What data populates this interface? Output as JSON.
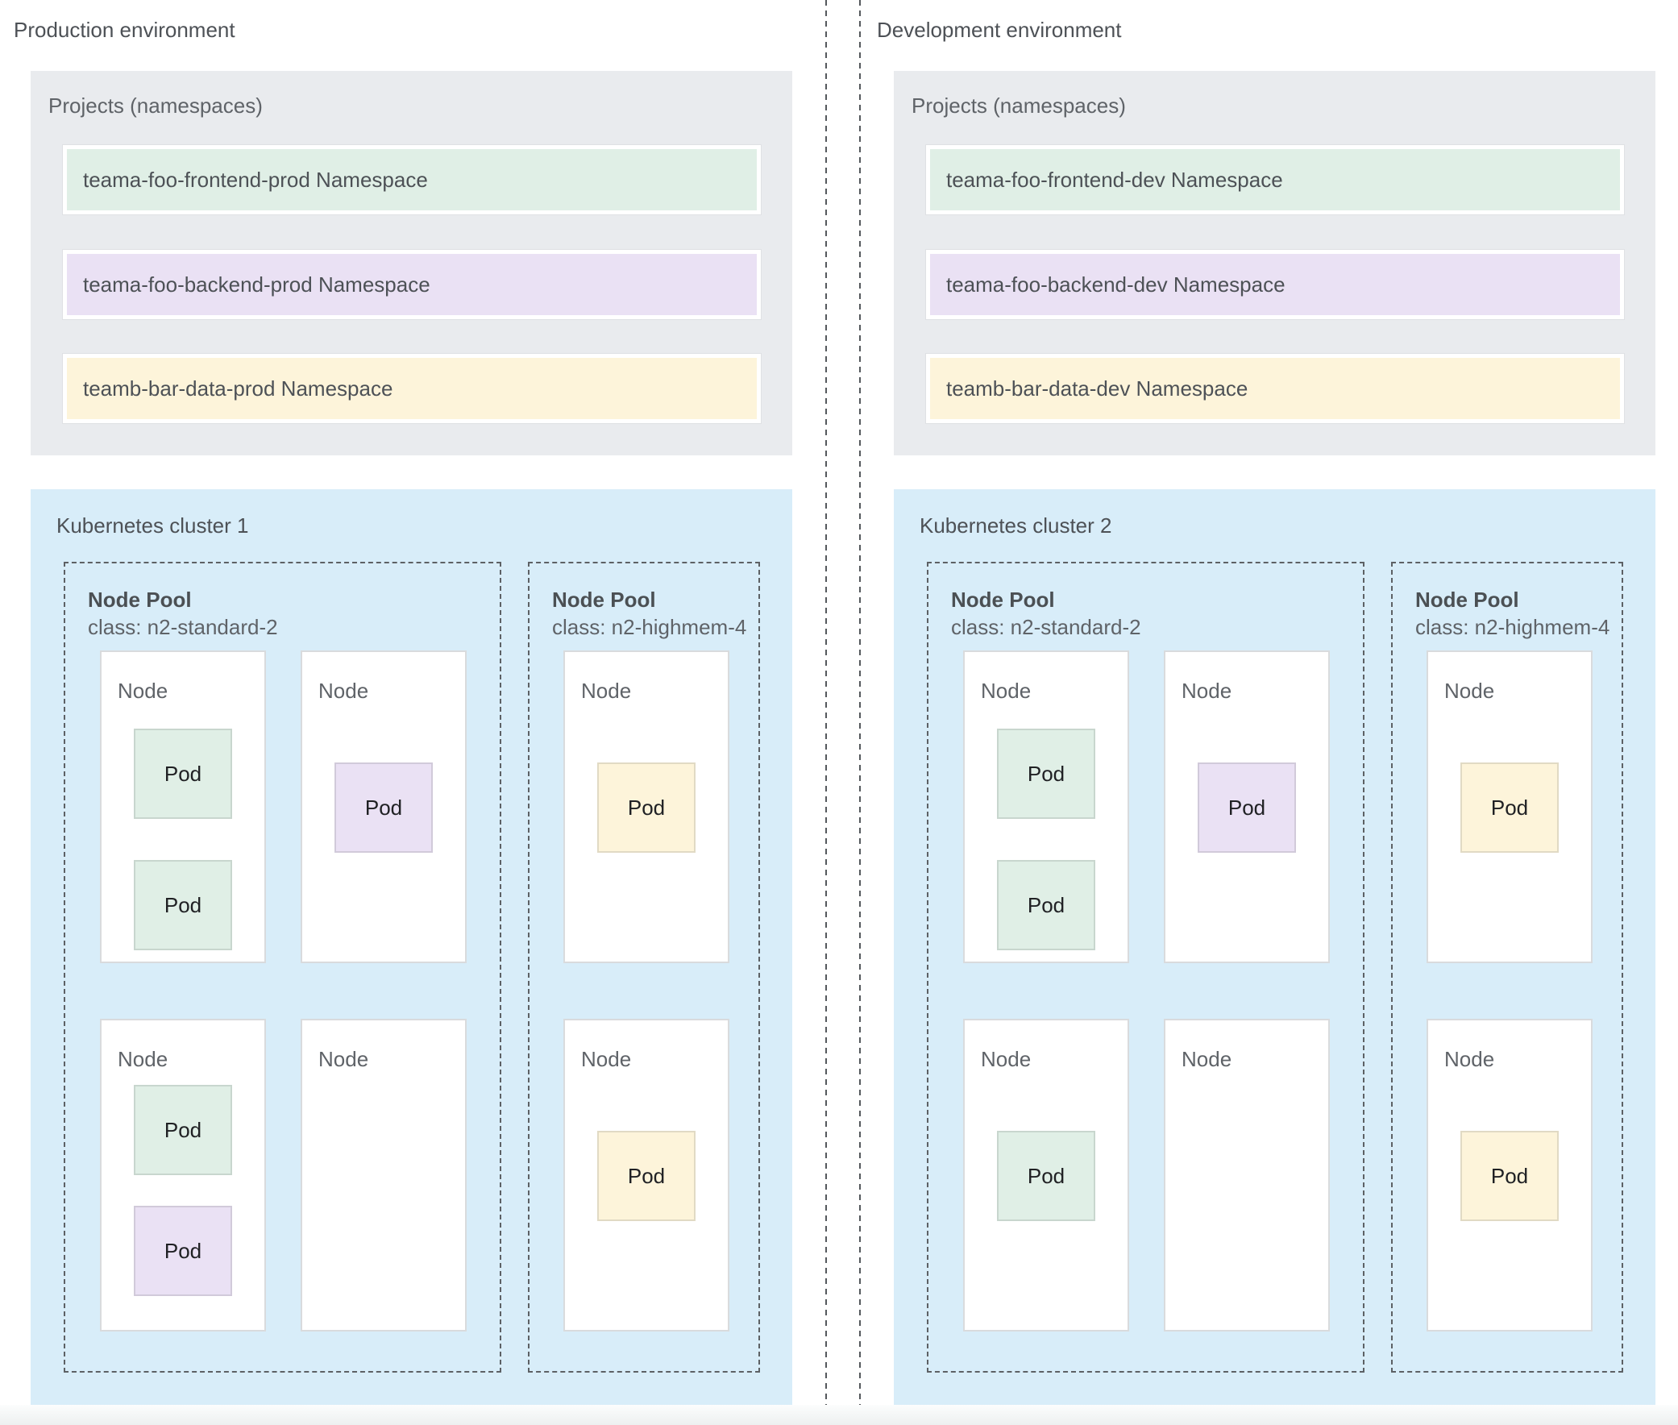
{
  "colors": {
    "gray-box": "#e9ebee",
    "blue-box": "#d8edf9",
    "green": "#e0efe6",
    "purple": "#eae1f4",
    "yellow": "#fdf4da"
  },
  "environments": [
    {
      "label": "Production environment",
      "projects": {
        "title": "Projects (namespaces)",
        "namespaces": [
          {
            "name": "teama-foo-frontend-prod Namespace",
            "color": "green"
          },
          {
            "name": "teama-foo-backend-prod Namespace",
            "color": "purple"
          },
          {
            "name": "teamb-bar-data-prod Namespace",
            "color": "yellow"
          }
        ]
      },
      "cluster": {
        "title": "Kubernetes cluster 1",
        "node_pools": [
          {
            "name": "Node Pool",
            "class_label": "class: n2-standard-2",
            "nodes": [
              {
                "label": "Node",
                "pods": [
                  {
                    "label": "Pod",
                    "color": "green"
                  },
                  {
                    "label": "Pod",
                    "color": "green"
                  }
                ]
              },
              {
                "label": "Node",
                "pods": [
                  {
                    "label": "Pod",
                    "color": "purple"
                  }
                ]
              },
              {
                "label": "Node",
                "pods": [
                  {
                    "label": "Pod",
                    "color": "green"
                  },
                  {
                    "label": "Pod",
                    "color": "purple"
                  }
                ]
              },
              {
                "label": "Node",
                "pods": []
              }
            ]
          },
          {
            "name": "Node Pool",
            "class_label": "class: n2-highmem-4",
            "nodes": [
              {
                "label": "Node",
                "pods": [
                  {
                    "label": "Pod",
                    "color": "yellow"
                  }
                ]
              },
              {
                "label": "Node",
                "pods": [
                  {
                    "label": "Pod",
                    "color": "yellow"
                  }
                ]
              }
            ]
          }
        ]
      }
    },
    {
      "label": "Development environment",
      "projects": {
        "title": "Projects (namespaces)",
        "namespaces": [
          {
            "name": "teama-foo-frontend-dev Namespace",
            "color": "green"
          },
          {
            "name": "teama-foo-backend-dev Namespace",
            "color": "purple"
          },
          {
            "name": "teamb-bar-data-dev Namespace",
            "color": "yellow"
          }
        ]
      },
      "cluster": {
        "title": "Kubernetes cluster 2",
        "node_pools": [
          {
            "name": "Node Pool",
            "class_label": "class: n2-standard-2",
            "nodes": [
              {
                "label": "Node",
                "pods": [
                  {
                    "label": "Pod",
                    "color": "green"
                  },
                  {
                    "label": "Pod",
                    "color": "green"
                  }
                ]
              },
              {
                "label": "Node",
                "pods": [
                  {
                    "label": "Pod",
                    "color": "purple"
                  }
                ]
              },
              {
                "label": "Node",
                "pods": [
                  {
                    "label": "Pod",
                    "color": "green"
                  }
                ]
              },
              {
                "label": "Node",
                "pods": []
              }
            ]
          },
          {
            "name": "Node Pool",
            "class_label": "class: n2-highmem-4",
            "nodes": [
              {
                "label": "Node",
                "pods": [
                  {
                    "label": "Pod",
                    "color": "yellow"
                  }
                ]
              },
              {
                "label": "Node",
                "pods": [
                  {
                    "label": "Pod",
                    "color": "yellow"
                  }
                ]
              }
            ]
          }
        ]
      }
    }
  ]
}
